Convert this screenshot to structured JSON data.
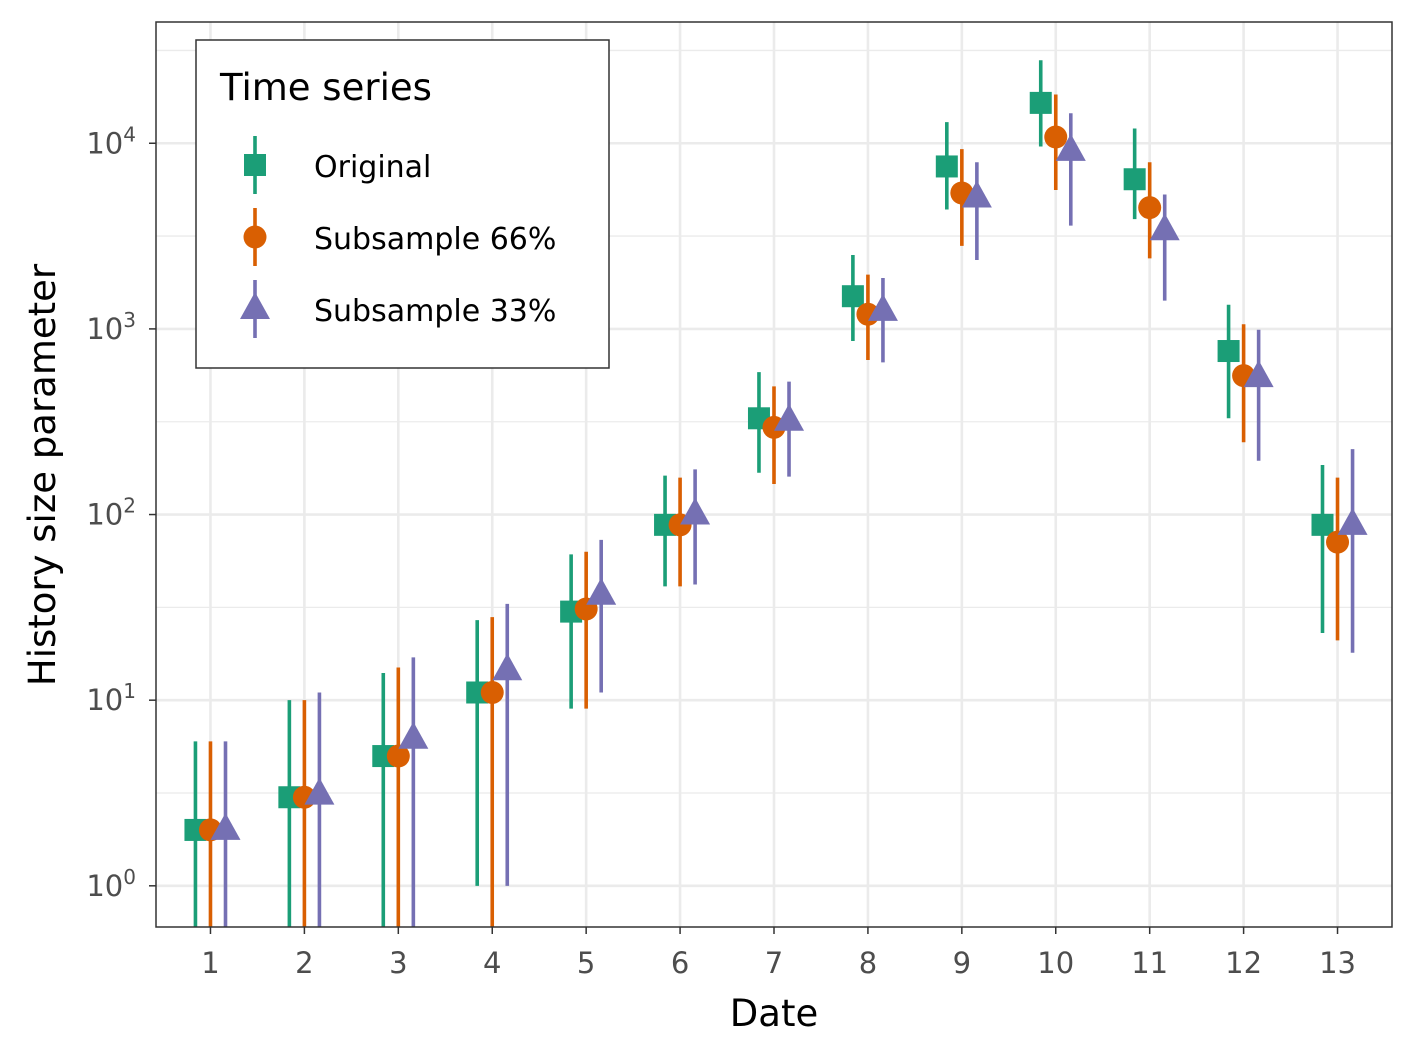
{
  "chart_data": {
    "type": "scatter",
    "subtype": "pointrange",
    "xlabel": "Date",
    "ylabel": "History size parameter",
    "x_ticks": [
      "1",
      "2",
      "3",
      "4",
      "5",
      "6",
      "7",
      "8",
      "9",
      "10",
      "11",
      "12",
      "13"
    ],
    "y_scale": "log10",
    "y_ticks": [
      {
        "value": 1,
        "base": "10",
        "exp": "0"
      },
      {
        "value": 10,
        "base": "10",
        "exp": "1"
      },
      {
        "value": 100,
        "base": "10",
        "exp": "2"
      },
      {
        "value": 1000,
        "base": "10",
        "exp": "3"
      },
      {
        "value": 10000,
        "base": "10",
        "exp": "4"
      }
    ],
    "xlim": [
      0.42,
      13.58
    ],
    "ylim": [
      0.6,
      45000
    ],
    "grid": true,
    "legend": {
      "title": "Time series",
      "position": "top-left-inside"
    },
    "series": [
      {
        "name": "Original",
        "color": "#1b9e77",
        "shape": "square",
        "points": [
          {
            "x": 1,
            "y": 2,
            "lo": 0.6,
            "hi": 6
          },
          {
            "x": 2,
            "y": 3,
            "lo": 0.6,
            "hi": 10
          },
          {
            "x": 3,
            "y": 5,
            "lo": 0.6,
            "hi": 14
          },
          {
            "x": 4,
            "y": 11,
            "lo": 1,
            "hi": 27
          },
          {
            "x": 5,
            "y": 30,
            "lo": 9,
            "hi": 61
          },
          {
            "x": 6,
            "y": 88,
            "lo": 41,
            "hi": 162
          },
          {
            "x": 7,
            "y": 330,
            "lo": 168,
            "hi": 585
          },
          {
            "x": 8,
            "y": 1500,
            "lo": 860,
            "hi": 2500
          },
          {
            "x": 9,
            "y": 7500,
            "lo": 4400,
            "hi": 13000
          },
          {
            "x": 10,
            "y": 16500,
            "lo": 9600,
            "hi": 28000
          },
          {
            "x": 11,
            "y": 6400,
            "lo": 3900,
            "hi": 12000
          },
          {
            "x": 12,
            "y": 760,
            "lo": 330,
            "hi": 1350
          },
          {
            "x": 13,
            "y": 88,
            "lo": 23,
            "hi": 185
          }
        ]
      },
      {
        "name": "Subsample 66%",
        "color": "#d95f02",
        "shape": "circle",
        "points": [
          {
            "x": 1,
            "y": 2,
            "lo": 0.6,
            "hi": 6
          },
          {
            "x": 2,
            "y": 3,
            "lo": 0.6,
            "hi": 10
          },
          {
            "x": 3,
            "y": 5,
            "lo": 0.6,
            "hi": 15
          },
          {
            "x": 4,
            "y": 11,
            "lo": 0.6,
            "hi": 28
          },
          {
            "x": 5,
            "y": 31,
            "lo": 9,
            "hi": 63
          },
          {
            "x": 6,
            "y": 88,
            "lo": 41,
            "hi": 158
          },
          {
            "x": 7,
            "y": 295,
            "lo": 146,
            "hi": 490
          },
          {
            "x": 8,
            "y": 1200,
            "lo": 680,
            "hi": 1960
          },
          {
            "x": 9,
            "y": 5400,
            "lo": 2800,
            "hi": 9300
          },
          {
            "x": 10,
            "y": 10800,
            "lo": 5600,
            "hi": 18300
          },
          {
            "x": 11,
            "y": 4500,
            "lo": 2400,
            "hi": 7900
          },
          {
            "x": 12,
            "y": 560,
            "lo": 245,
            "hi": 1060
          },
          {
            "x": 13,
            "y": 71,
            "lo": 21,
            "hi": 158
          }
        ]
      },
      {
        "name": "Subsample 33%",
        "color": "#7570b3",
        "shape": "triangle",
        "points": [
          {
            "x": 1,
            "y": 2,
            "lo": 0.6,
            "hi": 6
          },
          {
            "x": 2,
            "y": 3.1,
            "lo": 0.6,
            "hi": 11
          },
          {
            "x": 3,
            "y": 6.2,
            "lo": 0.6,
            "hi": 17
          },
          {
            "x": 4,
            "y": 14.5,
            "lo": 1,
            "hi": 33
          },
          {
            "x": 5,
            "y": 37,
            "lo": 11,
            "hi": 73
          },
          {
            "x": 6,
            "y": 100,
            "lo": 42,
            "hi": 175
          },
          {
            "x": 7,
            "y": 320,
            "lo": 160,
            "hi": 520
          },
          {
            "x": 8,
            "y": 1250,
            "lo": 660,
            "hi": 1880
          },
          {
            "x": 9,
            "y": 5100,
            "lo": 2350,
            "hi": 7900
          },
          {
            "x": 10,
            "y": 9100,
            "lo": 3600,
            "hi": 14500
          },
          {
            "x": 11,
            "y": 3400,
            "lo": 1420,
            "hi": 5300
          },
          {
            "x": 12,
            "y": 550,
            "lo": 195,
            "hi": 990
          },
          {
            "x": 13,
            "y": 88,
            "lo": 18,
            "hi": 225
          }
        ]
      }
    ]
  }
}
